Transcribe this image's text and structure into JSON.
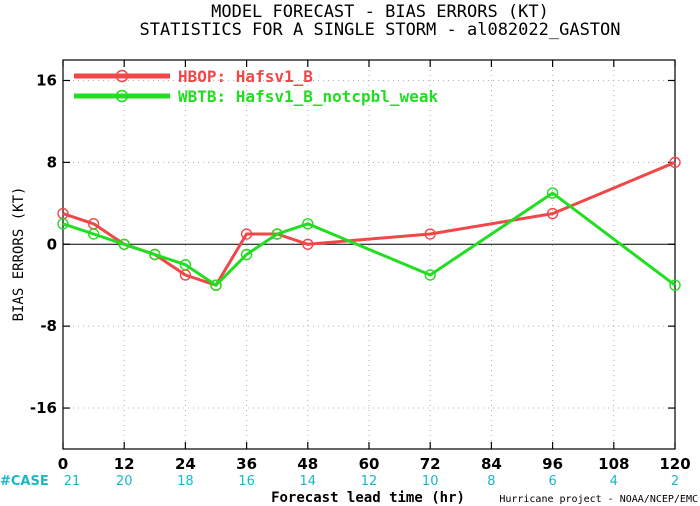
{
  "chart_data": {
    "type": "line",
    "title": "MODEL FORECAST - BIAS ERRORS (KT)",
    "subtitle": "STATISTICS FOR A SINGLE STORM - al082022_GASTON",
    "xlabel": "Forecast lead time (hr)",
    "ylabel": "BIAS ERRORS (KT)",
    "xlim": [
      0,
      120
    ],
    "ylim": [
      -20,
      18
    ],
    "x_ticks": [
      "0",
      "12",
      "24",
      "36",
      "48",
      "60",
      "72",
      "84",
      "96",
      "108",
      "120"
    ],
    "y_ticks": [
      "16",
      "8",
      "0",
      "-8",
      "-16"
    ],
    "grid": true,
    "legend_position": "top-left",
    "series": [
      {
        "name": "HBOP: Hafsv1_B",
        "color": "#f04848",
        "x": [
          0,
          6,
          12,
          18,
          24,
          30,
          36,
          42,
          48,
          72,
          96,
          120
        ],
        "y": [
          3,
          2,
          0,
          -1,
          -3,
          -4,
          1,
          1,
          0,
          1,
          3,
          8
        ]
      },
      {
        "name": "WBTB: Hafsv1_B_notcpbl_weak",
        "color": "#22dd22",
        "x": [
          0,
          6,
          12,
          18,
          24,
          30,
          36,
          42,
          48,
          72,
          96,
          120
        ],
        "y": [
          2,
          1,
          0,
          -1,
          -2,
          -4,
          -1,
          1,
          2,
          -3,
          5,
          -4
        ]
      }
    ],
    "case_label": "#CASE",
    "case_counts": [
      "21",
      "20",
      "18",
      "16",
      "14",
      "12",
      "10",
      "8",
      "6",
      "4",
      "2"
    ],
    "credit": "Hurricane project - NOAA/NCEP/EMC"
  }
}
